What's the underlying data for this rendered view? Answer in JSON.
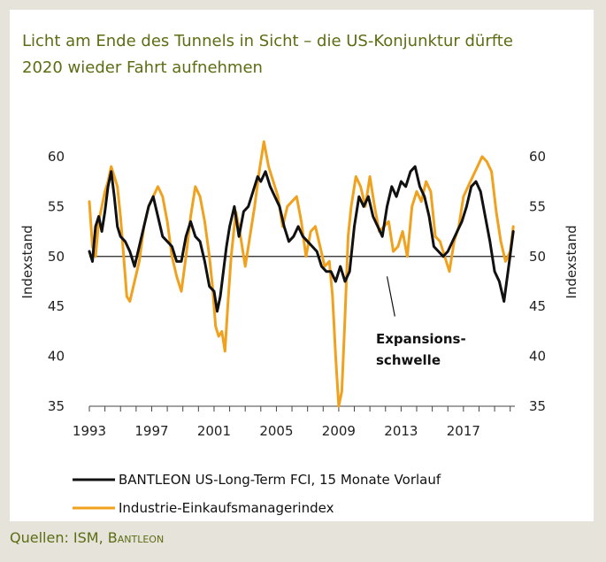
{
  "colors": {
    "background": "#e6e3db",
    "panel": "#ffffff",
    "accent_text": "#5c6d12",
    "series_fci": "#111111",
    "series_pmi": "#f0a11e"
  },
  "source": {
    "prefix": "Quellen: ISM, ",
    "brand": "Bantleon"
  },
  "chart_data": {
    "type": "line",
    "title_line1": "Licht am Ende des Tunnels in Sicht – die US-Konjunktur dürfte",
    "title_line2": "2020 wieder Fahrt aufnehmen",
    "ylabel_left": "Indexstand",
    "ylabel_right": "Indexstand",
    "ylim": [
      35,
      61.5
    ],
    "xlim": [
      1993,
      2020.3
    ],
    "yticks": [
      "60",
      "55",
      "50",
      "45",
      "40",
      "35"
    ],
    "xticks": [
      "1993",
      "1997",
      "2001",
      "2005",
      "2009",
      "2013",
      "2017"
    ],
    "threshold": 50,
    "annotation_line1": "Expansions-",
    "annotation_line2": "schwelle",
    "legend": "bottom",
    "series": [
      {
        "name": "BANTLEON US-Long-Term FCI, 15 Monate Vorlauf",
        "color": "#111111",
        "x": [
          1993.0,
          1993.2,
          1993.4,
          1993.6,
          1993.8,
          1994.0,
          1994.2,
          1994.4,
          1994.6,
          1994.8,
          1995.0,
          1995.3,
          1995.6,
          1995.9,
          1996.2,
          1996.5,
          1996.8,
          1997.1,
          1997.4,
          1997.7,
          1998.0,
          1998.3,
          1998.6,
          1998.9,
          1999.2,
          1999.5,
          1999.8,
          2000.1,
          2000.4,
          2000.7,
          2001.0,
          2001.2,
          2001.4,
          2001.6,
          2001.8,
          2002.0,
          2002.3,
          2002.6,
          2002.9,
          2003.2,
          2003.5,
          2003.8,
          2004.0,
          2004.3,
          2004.6,
          2004.9,
          2005.2,
          2005.5,
          2005.8,
          2006.1,
          2006.4,
          2006.7,
          2007.0,
          2007.3,
          2007.6,
          2007.9,
          2008.2,
          2008.5,
          2008.8,
          2009.1,
          2009.4,
          2009.7,
          2010.0,
          2010.3,
          2010.6,
          2010.9,
          2011.2,
          2011.5,
          2011.8,
          2012.1,
          2012.4,
          2012.7,
          2013.0,
          2013.3,
          2013.6,
          2013.9,
          2014.2,
          2014.5,
          2014.8,
          2015.1,
          2015.4,
          2015.7,
          2016.0,
          2016.3,
          2016.6,
          2016.9,
          2017.2,
          2017.5,
          2017.8,
          2018.1,
          2018.4,
          2018.7,
          2019.0,
          2019.3,
          2019.6,
          2019.9,
          2020.2
        ],
        "values": [
          50.5,
          49.5,
          53.0,
          54.0,
          52.5,
          54.5,
          57.0,
          58.5,
          56.0,
          53.0,
          52.0,
          51.5,
          50.5,
          49.0,
          51.0,
          53.0,
          55.0,
          56.0,
          54.0,
          52.0,
          51.5,
          51.0,
          49.5,
          49.5,
          52.0,
          53.5,
          52.0,
          51.5,
          49.5,
          47.0,
          46.5,
          44.5,
          46.0,
          48.5,
          51.0,
          53.0,
          55.0,
          52.0,
          54.5,
          55.0,
          56.5,
          58.0,
          57.5,
          58.5,
          57.0,
          56.0,
          55.0,
          53.0,
          51.5,
          52.0,
          53.0,
          52.0,
          51.5,
          51.0,
          50.5,
          49.0,
          48.5,
          48.5,
          47.5,
          49.0,
          47.5,
          48.5,
          53.0,
          56.0,
          55.0,
          56.0,
          54.0,
          53.0,
          52.0,
          55.0,
          57.0,
          56.0,
          57.5,
          57.0,
          58.5,
          59.0,
          57.0,
          56.0,
          54.0,
          51.0,
          50.5,
          50.0,
          50.5,
          51.5,
          52.5,
          53.5,
          55.0,
          57.0,
          57.5,
          56.5,
          54.0,
          51.5,
          48.5,
          47.5,
          45.5,
          49.0,
          52.5
        ]
      },
      {
        "name": "Industrie-Einkaufsmanagerindex",
        "color": "#f0a11e",
        "x": [
          1993.0,
          1993.2,
          1993.4,
          1993.6,
          1993.8,
          1994.0,
          1994.2,
          1994.4,
          1994.6,
          1994.8,
          1995.0,
          1995.2,
          1995.4,
          1995.6,
          1995.9,
          1996.2,
          1996.5,
          1996.8,
          1997.1,
          1997.4,
          1997.7,
          1998.0,
          1998.3,
          1998.6,
          1998.9,
          1999.2,
          1999.5,
          1999.8,
          2000.1,
          2000.4,
          2000.7,
          2000.9,
          2001.1,
          2001.3,
          2001.5,
          2001.7,
          2001.9,
          2002.1,
          2002.4,
          2002.7,
          2003.0,
          2003.3,
          2003.6,
          2003.9,
          2004.2,
          2004.5,
          2004.8,
          2005.1,
          2005.4,
          2005.7,
          2006.0,
          2006.3,
          2006.6,
          2006.9,
          2007.2,
          2007.5,
          2007.8,
          2008.1,
          2008.4,
          2008.6,
          2008.8,
          2009.0,
          2009.2,
          2009.4,
          2009.6,
          2009.8,
          2010.1,
          2010.4,
          2010.7,
          2011.0,
          2011.3,
          2011.6,
          2011.9,
          2012.2,
          2012.5,
          2012.8,
          2013.1,
          2013.4,
          2013.7,
          2014.0,
          2014.3,
          2014.6,
          2014.9,
          2015.2,
          2015.5,
          2015.8,
          2016.1,
          2016.4,
          2016.7,
          2017.0,
          2017.3,
          2017.6,
          2017.9,
          2018.2,
          2018.5,
          2018.8,
          2019.1,
          2019.4,
          2019.7,
          2020.0,
          2020.2
        ],
        "values": [
          55.5,
          51.0,
          50.0,
          53.5,
          55.0,
          56.5,
          57.5,
          59.0,
          58.0,
          57.0,
          54.0,
          50.0,
          46.0,
          45.5,
          47.5,
          49.5,
          53.0,
          55.0,
          56.0,
          57.0,
          56.0,
          53.5,
          50.0,
          48.0,
          46.5,
          50.0,
          54.0,
          57.0,
          56.0,
          53.5,
          50.0,
          47.0,
          43.0,
          42.0,
          42.5,
          40.5,
          45.5,
          50.0,
          54.5,
          52.0,
          49.0,
          52.0,
          55.0,
          58.5,
          61.5,
          59.0,
          57.5,
          56.0,
          53.0,
          55.0,
          55.5,
          56.0,
          53.5,
          50.0,
          52.5,
          53.0,
          51.0,
          49.0,
          49.5,
          46.0,
          40.0,
          35.0,
          36.5,
          44.0,
          52.0,
          55.0,
          58.0,
          57.0,
          55.0,
          58.0,
          55.0,
          52.5,
          53.0,
          53.5,
          50.5,
          51.0,
          52.5,
          50.0,
          55.0,
          56.5,
          55.5,
          57.5,
          56.5,
          52.0,
          51.5,
          50.0,
          48.5,
          51.5,
          53.0,
          56.0,
          57.0,
          58.0,
          59.0,
          60.0,
          59.5,
          58.5,
          54.5,
          51.5,
          49.5,
          50.5,
          53.0
        ]
      }
    ]
  }
}
